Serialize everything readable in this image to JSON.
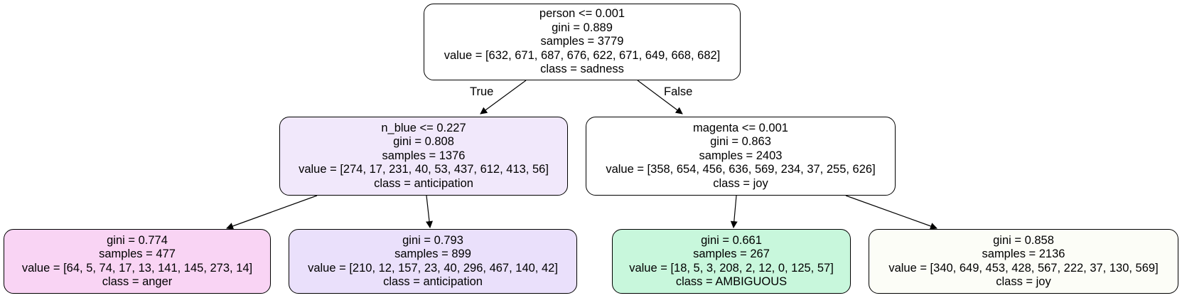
{
  "nodes": {
    "root": {
      "split": "person <= 0.001",
      "gini": "gini = 0.889",
      "samples": "samples = 3779",
      "value": "value = [632, 671, 687, 676, 622, 671, 649, 668, 682]",
      "class": "class = sadness",
      "fill": "#ffffff"
    },
    "left": {
      "split": "n_blue <= 0.227",
      "gini": "gini = 0.808",
      "samples": "samples = 1376",
      "value": "value = [274, 17, 231, 40, 53, 437, 612, 413, 56]",
      "class": "class = anticipation",
      "fill": "#f1e8fb"
    },
    "right": {
      "split": "magenta <= 0.001",
      "gini": "gini = 0.863",
      "samples": "samples = 2403",
      "value": "value = [358, 654, 456, 636, 569, 234, 37, 255, 626]",
      "class": "class = joy",
      "fill": "#ffffff"
    },
    "left_left": {
      "gini": "gini = 0.774",
      "samples": "samples = 477",
      "value": "value = [64, 5, 74, 17, 13, 141, 145, 273, 14]",
      "class": "class = anger",
      "fill": "#f9d4f4"
    },
    "left_right": {
      "gini": "gini = 0.793",
      "samples": "samples = 899",
      "value": "value = [210, 12, 157, 23, 40, 296, 467, 140, 42]",
      "class": "class = anticipation",
      "fill": "#eae0fb"
    },
    "right_left": {
      "gini": "gini = 0.661",
      "samples": "samples = 267",
      "value": "value = [18, 5, 3, 208, 2, 12, 0, 125, 57]",
      "class": "class = AMBIGUOUS",
      "fill": "#c8f7dc"
    },
    "right_right": {
      "gini": "gini = 0.858",
      "samples": "samples = 2136",
      "value": "value = [340, 649, 453, 428, 567, 222, 37, 130, 569]",
      "class": "class = joy",
      "fill": "#fcfdf7"
    }
  },
  "edge_labels": {
    "true": "True",
    "false": "False"
  },
  "edge_color": "#000000"
}
